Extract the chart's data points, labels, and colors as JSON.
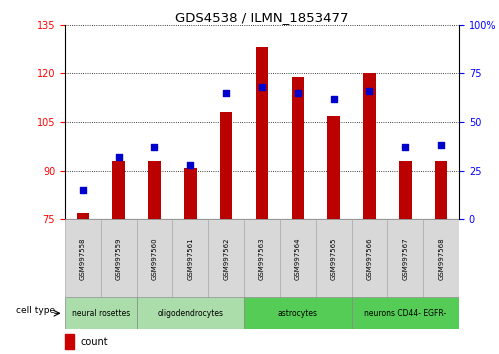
{
  "title": "GDS4538 / ILMN_1853477",
  "samples": [
    "GSM997558",
    "GSM997559",
    "GSM997560",
    "GSM997561",
    "GSM997562",
    "GSM997563",
    "GSM997564",
    "GSM997565",
    "GSM997566",
    "GSM997567",
    "GSM997568"
  ],
  "counts": [
    77,
    93,
    93,
    91,
    108,
    128,
    119,
    107,
    120,
    93,
    93
  ],
  "percentile_ranks": [
    15,
    32,
    37,
    28,
    65,
    68,
    65,
    62,
    66,
    37,
    38
  ],
  "ylim_left": [
    75,
    135
  ],
  "ylim_right": [
    0,
    100
  ],
  "yticks_left": [
    75,
    90,
    105,
    120,
    135
  ],
  "yticks_right": [
    0,
    25,
    50,
    75,
    100
  ],
  "bar_color": "#bb0000",
  "dot_color": "#0000cc",
  "cell_type_groups": [
    {
      "label": "neural rosettes",
      "start": 0,
      "end": 1,
      "color": "#aaddaa"
    },
    {
      "label": "oligodendrocytes",
      "start": 2,
      "end": 4,
      "color": "#aaddaa"
    },
    {
      "label": "astrocytes",
      "start": 5,
      "end": 7,
      "color": "#55cc55"
    },
    {
      "label": "neurons CD44- EGFR-",
      "start": 8,
      "end": 10,
      "color": "#55cc55"
    }
  ],
  "legend_count_color": "#cc0000",
  "legend_pct_color": "#0000cc",
  "bar_width": 0.35
}
